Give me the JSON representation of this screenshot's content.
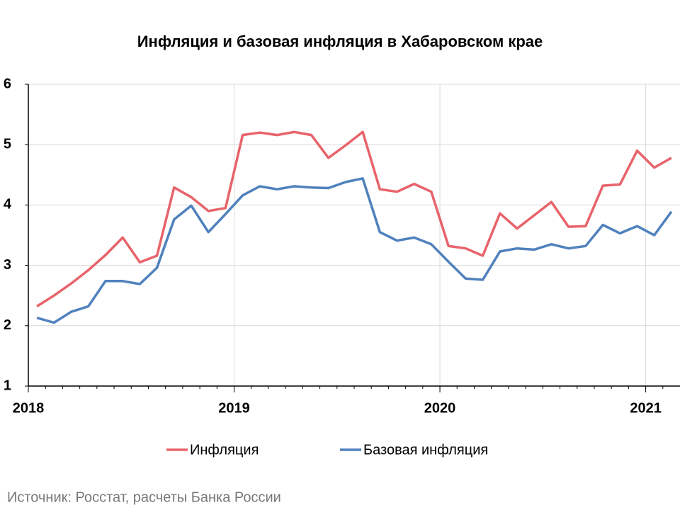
{
  "chart_data": {
    "type": "line",
    "title": "Инфляция и базовая инфляция в Хабаровском крае",
    "source": "Источник: Росстат, расчеты Банка России",
    "categories": [
      "2018",
      null,
      null,
      null,
      null,
      null,
      null,
      null,
      null,
      null,
      null,
      null,
      "2019",
      null,
      null,
      null,
      null,
      null,
      null,
      null,
      null,
      null,
      null,
      null,
      "2020",
      null,
      null,
      null,
      null,
      null,
      null,
      null,
      null,
      null,
      null,
      null,
      "2021",
      null
    ],
    "series": [
      {
        "name": "Инфляция",
        "color": "#e8636b",
        "values": [
          2.32,
          2.5,
          2.7,
          2.92,
          3.17,
          3.46,
          3.05,
          3.16,
          4.29,
          4.13,
          3.9,
          3.95,
          5.16,
          5.2,
          5.16,
          5.21,
          5.16,
          4.78,
          4.99,
          5.21,
          4.26,
          4.22,
          4.35,
          4.22,
          3.32,
          3.28,
          3.16,
          3.86,
          3.61,
          3.83,
          4.05,
          3.64,
          3.65,
          4.32,
          4.34,
          4.9,
          4.62,
          4.78
        ]
      },
      {
        "name": "Базовая инфляция",
        "color": "#4f81bd",
        "values": [
          2.13,
          2.05,
          2.23,
          2.32,
          2.74,
          2.74,
          2.69,
          2.96,
          3.76,
          3.99,
          3.55,
          3.85,
          4.16,
          4.31,
          4.26,
          4.31,
          4.29,
          4.28,
          4.38,
          4.44,
          3.55,
          3.41,
          3.46,
          3.35,
          3.06,
          2.78,
          2.76,
          3.23,
          3.28,
          3.26,
          3.35,
          3.28,
          3.32,
          3.67,
          3.53,
          3.65,
          3.5,
          3.89
        ]
      }
    ],
    "ylim": [
      1,
      6
    ],
    "yticks": [
      1,
      2,
      3,
      4,
      5,
      6
    ],
    "grid": true
  }
}
